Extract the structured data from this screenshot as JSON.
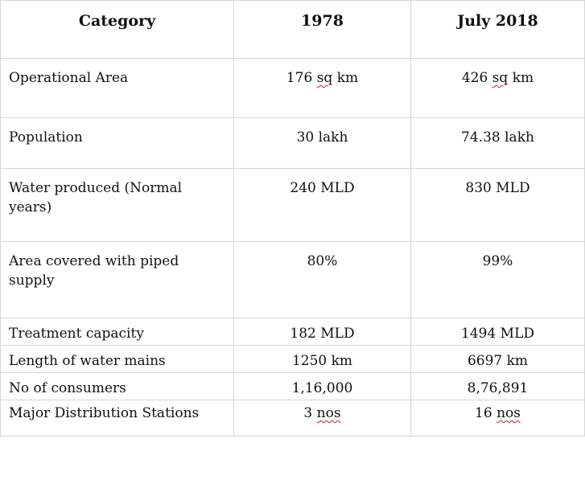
{
  "table": {
    "headers": [
      "Category",
      "1978",
      "July 2018"
    ],
    "rows": [
      {
        "category": "Operational Area",
        "y1978_num": "176",
        "y1978_unit": "sq",
        "y1978_rest": " km",
        "y2018_num": "426",
        "y2018_unit": "sq",
        "y2018_rest": " km"
      },
      {
        "category": "Population",
        "y1978": "30 lakh",
        "y2018": "74.38 lakh"
      },
      {
        "category": "Water produced (Normal years)",
        "y1978": "240 MLD",
        "y2018": "830 MLD"
      },
      {
        "category": "Area covered with piped supply",
        "y1978": "80%",
        "y2018": "99%"
      },
      {
        "category": "Treatment capacity",
        "y1978": "182 MLD",
        "y2018": "1494 MLD"
      },
      {
        "category": "Length of water mains",
        "y1978": "1250 km",
        "y2018": "6697 km"
      },
      {
        "category": "No of consumers",
        "y1978": "1,16,000",
        "y2018": "8,76,891"
      },
      {
        "category": "Major Distribution Stations",
        "y1978_num": "3 ",
        "y1978_unit": "nos",
        "y2018_num": "16 ",
        "y2018_unit": "nos"
      }
    ]
  },
  "colors": {
    "border": "#d6d6d6",
    "text": "#111111",
    "spellcheck": "#cc2222"
  }
}
